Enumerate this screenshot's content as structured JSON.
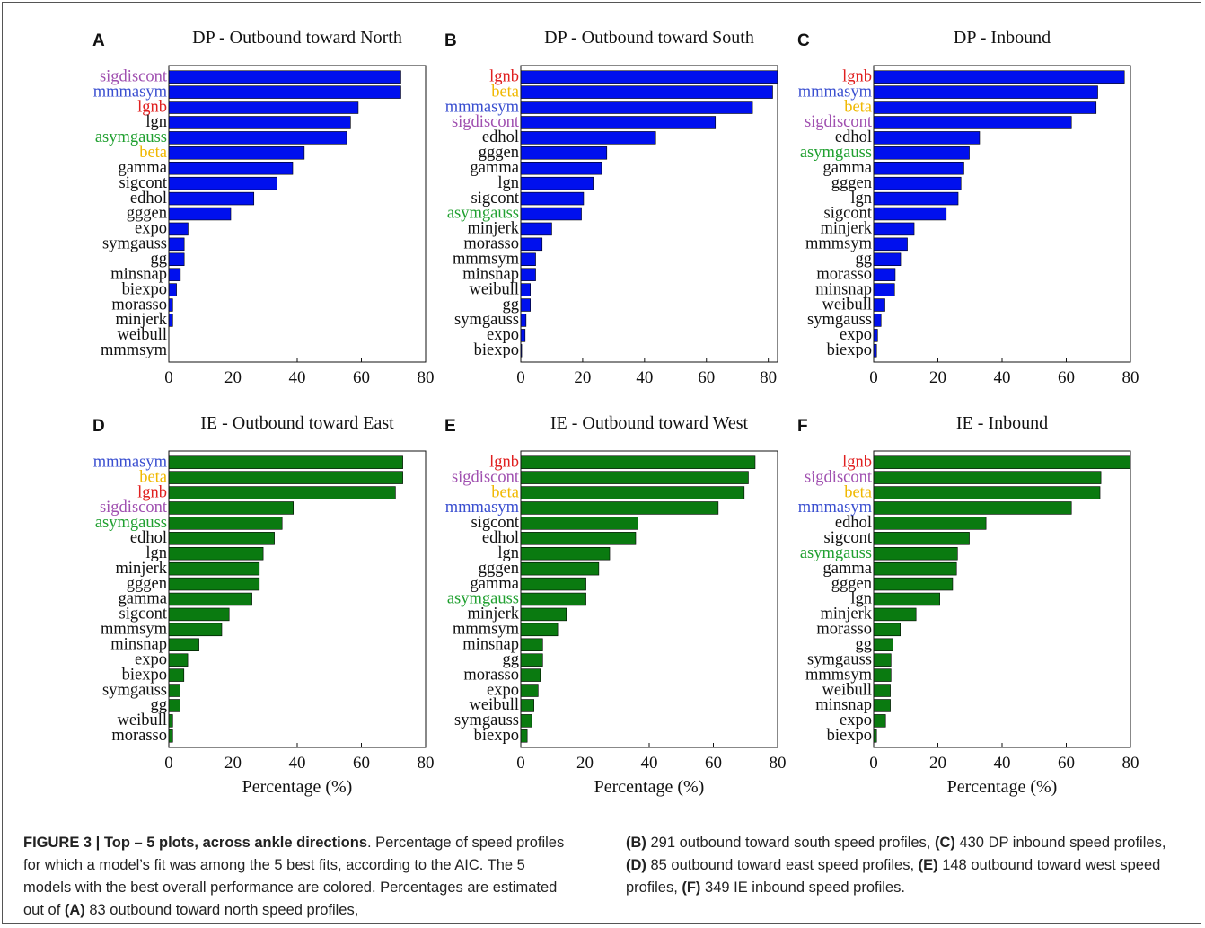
{
  "highlight_colors": {
    "sigdiscont": "#a050b0",
    "mmmasym": "#3a4fd0",
    "lgnb": "#e02020",
    "asymgauss": "#20a030",
    "beta": "#f0b800",
    "default": "#111111"
  },
  "bar_colors": {
    "DP": "#0010ee",
    "IE": "#0a7a10"
  },
  "chart_data": [
    {
      "type": "bar",
      "orientation": "horizontal",
      "letter": "A",
      "title": "DP - Outbound toward North",
      "xlabel": "",
      "xlim": [
        0,
        80
      ],
      "xticks": [
        "0",
        "20",
        "40",
        "60",
        "80"
      ],
      "categories": [
        "sigdiscont",
        "mmmasym",
        "lgnb",
        "lgn",
        "asymgauss",
        "beta",
        "gamma",
        "sigcont",
        "edhol",
        "gggen",
        "expo",
        "symgauss",
        "gg",
        "minsnap",
        "biexpo",
        "morasso",
        "minjerk",
        "weibull",
        "mmmsym"
      ],
      "values": [
        72.3,
        72.3,
        59.0,
        56.6,
        55.4,
        42.2,
        38.6,
        33.7,
        26.5,
        19.3,
        6.0,
        4.8,
        4.8,
        3.6,
        2.4,
        1.2,
        1.2,
        0,
        0
      ]
    },
    {
      "type": "bar",
      "orientation": "horizontal",
      "letter": "B",
      "title": "DP - Outbound toward South",
      "xlabel": "",
      "xlim": [
        0,
        83
      ],
      "xticks": [
        "0",
        "20",
        "40",
        "60",
        "80"
      ],
      "categories": [
        "lgnb",
        "beta",
        "mmmasym",
        "sigdiscont",
        "edhol",
        "gggen",
        "gamma",
        "lgn",
        "sigcont",
        "asymgauss",
        "minjerk",
        "morasso",
        "mmmsym",
        "minsnap",
        "weibull",
        "gg",
        "symgauss",
        "expo",
        "biexpo"
      ],
      "values": [
        83.0,
        81.4,
        74.9,
        62.9,
        43.6,
        27.8,
        26.1,
        23.4,
        20.3,
        19.6,
        10.0,
        6.9,
        4.8,
        4.8,
        3.1,
        3.1,
        1.7,
        1.4,
        0.3
      ]
    },
    {
      "type": "bar",
      "orientation": "horizontal",
      "letter": "C",
      "title": "DP - Inbound",
      "xlabel": "",
      "xlim": [
        0,
        80
      ],
      "xticks": [
        "0",
        "20",
        "40",
        "60",
        "80"
      ],
      "categories": [
        "lgnb",
        "mmmasym",
        "beta",
        "sigdiscont",
        "edhol",
        "asymgauss",
        "gamma",
        "gggen",
        "lgn",
        "sigcont",
        "minjerk",
        "mmmsym",
        "gg",
        "morasso",
        "minsnap",
        "weibull",
        "symgauss",
        "expo",
        "biexpo"
      ],
      "values": [
        78.1,
        69.8,
        69.3,
        61.6,
        33.0,
        29.8,
        28.1,
        27.2,
        26.3,
        22.6,
        12.6,
        10.5,
        8.4,
        6.7,
        6.5,
        3.5,
        2.3,
        1.2,
        0.9
      ]
    },
    {
      "type": "bar",
      "orientation": "horizontal",
      "letter": "D",
      "title": "IE - Outbound toward East",
      "xlabel": "Percentage (%)",
      "xlim": [
        0,
        80
      ],
      "xticks": [
        "0",
        "20",
        "40",
        "60",
        "80"
      ],
      "categories": [
        "mmmasym",
        "beta",
        "lgnb",
        "sigdiscont",
        "asymgauss",
        "edhol",
        "lgn",
        "minjerk",
        "gggen",
        "gamma",
        "sigcont",
        "mmmsym",
        "minsnap",
        "expo",
        "biexpo",
        "symgauss",
        "gg",
        "weibull",
        "morasso"
      ],
      "values": [
        72.9,
        72.9,
        70.6,
        38.8,
        35.3,
        32.9,
        29.4,
        28.2,
        28.2,
        25.9,
        18.8,
        16.5,
        9.4,
        5.9,
        4.7,
        3.5,
        3.5,
        1.2,
        1.2
      ]
    },
    {
      "type": "bar",
      "orientation": "horizontal",
      "letter": "E",
      "title": "IE - Outbound toward West",
      "xlabel": "Percentage (%)",
      "xlim": [
        0,
        80
      ],
      "xticks": [
        "0",
        "20",
        "40",
        "60",
        "80"
      ],
      "categories": [
        "lgnb",
        "sigdiscont",
        "beta",
        "mmmasym",
        "sigcont",
        "edhol",
        "lgn",
        "gggen",
        "gamma",
        "asymgauss",
        "minjerk",
        "mmmsym",
        "minsnap",
        "gg",
        "morasso",
        "expo",
        "weibull",
        "symgauss",
        "biexpo"
      ],
      "values": [
        73.0,
        70.9,
        69.6,
        61.5,
        36.5,
        35.8,
        27.7,
        24.3,
        20.3,
        20.3,
        14.2,
        11.5,
        6.8,
        6.8,
        6.1,
        5.4,
        4.1,
        3.4,
        2.0
      ]
    },
    {
      "type": "bar",
      "orientation": "horizontal",
      "letter": "F",
      "title": "IE - Inbound",
      "xlabel": "Percentage (%)",
      "xlim": [
        0,
        80
      ],
      "xticks": [
        "0",
        "20",
        "40",
        "60",
        "80"
      ],
      "categories": [
        "lgnb",
        "sigdiscont",
        "beta",
        "mmmasym",
        "edhol",
        "sigcont",
        "asymgauss",
        "gamma",
        "gggen",
        "lgn",
        "minjerk",
        "morasso",
        "gg",
        "symgauss",
        "mmmsym",
        "weibull",
        "minsnap",
        "expo",
        "biexpo"
      ],
      "values": [
        80.0,
        70.8,
        70.5,
        61.6,
        35.0,
        29.8,
        26.1,
        25.8,
        24.6,
        20.6,
        13.2,
        8.3,
        6.0,
        5.4,
        5.4,
        5.2,
        5.2,
        3.7,
        0.9
      ]
    }
  ],
  "caption": {
    "figure_label": "FIGURE 3 | Top – 5 plots, across ankle directions",
    "text_1": ". Percentage of speed profiles for which a model’s fit was among the 5 best fits, according to the AIC. The 5 models with the best overall performance are colored. Percentages are estimated out of ",
    "ref_a": "(A)",
    "text_a": " 83 outbound toward north speed profiles, ",
    "ref_b": "(B)",
    "text_b": " 291 outbound toward south speed profiles, ",
    "ref_c": "(C)",
    "text_c": " 430 DP inbound speed profiles, ",
    "ref_d": "(D)",
    "text_d": " 85 outbound toward east speed profiles, ",
    "ref_e": "(E)",
    "text_e": " 148 outbound toward west speed profiles, ",
    "ref_f": "(F)",
    "text_f": " 349 IE inbound speed profiles."
  }
}
